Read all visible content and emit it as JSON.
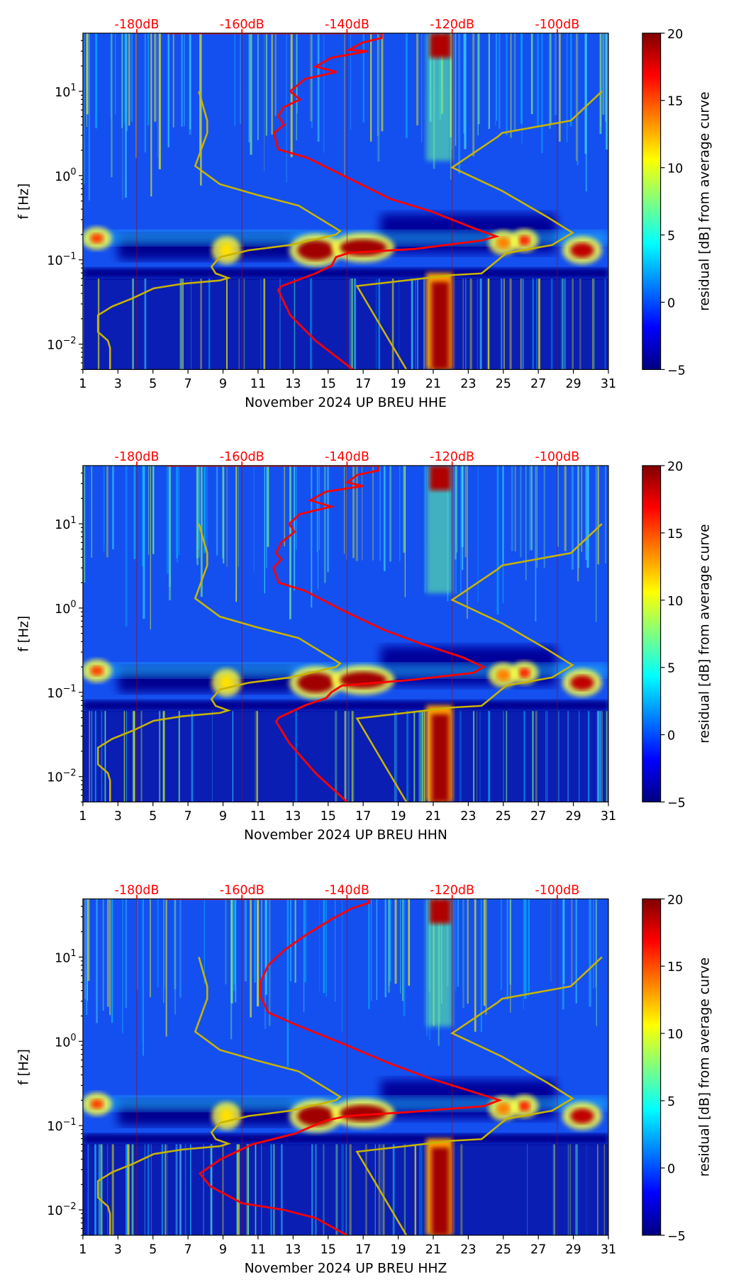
{
  "chart_data": [
    {
      "type": "heatmap",
      "xlabel": "November 2024 UP BREU  HHE",
      "ylabel": "f [Hz]",
      "xlim": [
        1,
        31
      ],
      "ylim": [
        0.005,
        49
      ],
      "yscale": "log",
      "x_ticks": [
        "1",
        "3",
        "5",
        "7",
        "9",
        "11",
        "13",
        "15",
        "17",
        "19",
        "21",
        "23",
        "25",
        "27",
        "29",
        "31"
      ],
      "y_ticks": [
        {
          "base": "10",
          "exp": "−2",
          "value": 0.01
        },
        {
          "base": "10",
          "exp": "−1",
          "value": 0.1
        },
        {
          "base": "10",
          "exp": "0",
          "value": 1
        },
        {
          "base": "10",
          "exp": "1",
          "value": 10
        }
      ],
      "top_axis": {
        "ticks": [
          "-180dB",
          "-160dB",
          "-140dB",
          "-120dB",
          "-100dB"
        ],
        "values": [
          -180,
          -160,
          -140,
          -120,
          -100
        ],
        "color": "#ff0000"
      },
      "colorbar": {
        "label": "residual [dB] from average curve",
        "ticks": [
          "20",
          "15",
          "10",
          "5",
          "0",
          "−5"
        ],
        "range": [
          -5,
          20
        ],
        "colormap": "jet"
      },
      "red_curve": {
        "color": "#ff0000",
        "points_dB_Hz": [
          [
            -174.5,
            49
          ],
          [
            -133.4,
            49
          ],
          [
            -133.4,
            43
          ],
          [
            -137,
            38
          ],
          [
            -139.7,
            31
          ],
          [
            -136,
            30
          ],
          [
            -143,
            25
          ],
          [
            -146,
            19.7
          ],
          [
            -142,
            17
          ],
          [
            -148,
            14
          ],
          [
            -150.8,
            10
          ],
          [
            -149,
            8
          ],
          [
            -152,
            6.5
          ],
          [
            -153.1,
            5.1
          ],
          [
            -152,
            4
          ],
          [
            -153.9,
            3.2
          ],
          [
            -153.1,
            2.05
          ],
          [
            -147.6,
            1.63
          ],
          [
            -139.7,
            0.93
          ],
          [
            -131.8,
            0.53
          ],
          [
            -123.9,
            0.375
          ],
          [
            -116,
            0.239
          ],
          [
            -111.6,
            0.19
          ],
          [
            -114.4,
            0.17
          ],
          [
            -127,
            0.135
          ],
          [
            -139.7,
            0.121
          ],
          [
            -142.1,
            0.108
          ],
          [
            -142.9,
            0.086
          ],
          [
            -146,
            0.069
          ],
          [
            -152.4,
            0.049
          ],
          [
            -153.1,
            0.044
          ],
          [
            -150.8,
            0.022
          ],
          [
            -146,
            0.011
          ],
          [
            -138.9,
            0.005
          ]
        ]
      },
      "low_model": {
        "color": "#c8b400",
        "points_dB_Hz": [
          [
            -168.2,
            10
          ],
          [
            -166.6,
            4.5
          ],
          [
            -166.6,
            3.2
          ],
          [
            -168.9,
            1.3
          ],
          [
            -164.2,
            0.79
          ],
          [
            -157.1,
            0.59
          ],
          [
            -149.2,
            0.44
          ],
          [
            -141.3,
            0.22
          ],
          [
            -142.1,
            0.2
          ],
          [
            -150.8,
            0.15
          ],
          [
            -158.7,
            0.13
          ],
          [
            -164.2,
            0.108
          ],
          [
            -165.8,
            0.083
          ],
          [
            -165,
            0.069
          ],
          [
            -162.6,
            0.061
          ],
          [
            -164.2,
            0.057
          ],
          [
            -171.3,
            0.052
          ],
          [
            -176.8,
            0.046
          ],
          [
            -180.8,
            0.035
          ],
          [
            -184.7,
            0.028
          ],
          [
            -187.4,
            0.022
          ],
          [
            -187.4,
            0.014
          ],
          [
            -185.5,
            0.011
          ],
          [
            -185.1,
            0.009
          ],
          [
            -185.1,
            0.005
          ]
        ]
      },
      "high_model": {
        "color": "#c8b400",
        "points_dB_Hz": [
          [
            -91.5,
            10
          ],
          [
            -97.4,
            4.5
          ],
          [
            -110.5,
            3.2
          ],
          [
            -111.3,
            2.9
          ],
          [
            -120,
            1.25
          ],
          [
            -110.5,
            0.66
          ],
          [
            -101.8,
            0.32
          ],
          [
            -97.1,
            0.21
          ],
          [
            -101,
            0.15
          ],
          [
            -109.7,
            0.12
          ],
          [
            -114.4,
            0.069
          ],
          [
            -120,
            0.066
          ],
          [
            -138.1,
            0.049
          ],
          [
            -128.7,
            0.005
          ]
        ]
      }
    },
    {
      "type": "heatmap",
      "xlabel": "November 2024 UP BREU  HHN",
      "ylabel": "f [Hz]",
      "xlim": [
        1,
        31
      ],
      "ylim": [
        0.005,
        49
      ],
      "yscale": "log",
      "x_ticks": [
        "1",
        "3",
        "5",
        "7",
        "9",
        "11",
        "13",
        "15",
        "17",
        "19",
        "21",
        "23",
        "25",
        "27",
        "29",
        "31"
      ],
      "y_ticks": [
        {
          "base": "10",
          "exp": "−2",
          "value": 0.01
        },
        {
          "base": "10",
          "exp": "−1",
          "value": 0.1
        },
        {
          "base": "10",
          "exp": "0",
          "value": 1
        },
        {
          "base": "10",
          "exp": "1",
          "value": 10
        }
      ],
      "top_axis": {
        "ticks": [
          "-180dB",
          "-160dB",
          "-140dB",
          "-120dB",
          "-100dB"
        ],
        "values": [
          -180,
          -160,
          -140,
          -120,
          -100
        ],
        "color": "#ff0000"
      },
      "colorbar": {
        "label": "residual [dB] from average curve",
        "ticks": [
          "20",
          "15",
          "10",
          "5",
          "0",
          "−5"
        ],
        "range": [
          -5,
          20
        ],
        "colormap": "jet"
      },
      "red_curve": {
        "color": "#ff0000",
        "points_dB_Hz": [
          [
            -174.5,
            49
          ],
          [
            -134,
            49
          ],
          [
            -134,
            43
          ],
          [
            -138,
            38
          ],
          [
            -140,
            31
          ],
          [
            -137,
            28
          ],
          [
            -144,
            24
          ],
          [
            -147,
            19
          ],
          [
            -143,
            16
          ],
          [
            -149,
            13
          ],
          [
            -151,
            10
          ],
          [
            -150,
            8
          ],
          [
            -152.5,
            6
          ],
          [
            -153.5,
            4.5
          ],
          [
            -152.5,
            3.8
          ],
          [
            -154,
            3
          ],
          [
            -153,
            2
          ],
          [
            -148,
            1.6
          ],
          [
            -141,
            0.95
          ],
          [
            -133,
            0.55
          ],
          [
            -126,
            0.38
          ],
          [
            -118,
            0.26
          ],
          [
            -114,
            0.2
          ],
          [
            -116,
            0.17
          ],
          [
            -128,
            0.14
          ],
          [
            -141,
            0.12
          ],
          [
            -143,
            0.1
          ],
          [
            -144,
            0.085
          ],
          [
            -148,
            0.07
          ],
          [
            -153,
            0.05
          ],
          [
            -153.5,
            0.045
          ],
          [
            -151,
            0.025
          ],
          [
            -146,
            0.011
          ],
          [
            -140,
            0.005
          ]
        ]
      },
      "low_model": {
        "color": "#c8b400",
        "points_dB_Hz": [
          [
            -168.2,
            10
          ],
          [
            -166.6,
            4.5
          ],
          [
            -166.6,
            3.2
          ],
          [
            -168.9,
            1.3
          ],
          [
            -164.2,
            0.79
          ],
          [
            -157.1,
            0.59
          ],
          [
            -149.2,
            0.44
          ],
          [
            -141.3,
            0.22
          ],
          [
            -142.1,
            0.2
          ],
          [
            -150.8,
            0.15
          ],
          [
            -158.7,
            0.13
          ],
          [
            -164.2,
            0.108
          ],
          [
            -165.8,
            0.083
          ],
          [
            -165,
            0.069
          ],
          [
            -162.6,
            0.061
          ],
          [
            -164.2,
            0.057
          ],
          [
            -171.3,
            0.052
          ],
          [
            -176.8,
            0.046
          ],
          [
            -180.8,
            0.035
          ],
          [
            -184.7,
            0.028
          ],
          [
            -187.4,
            0.022
          ],
          [
            -187.4,
            0.014
          ],
          [
            -185.5,
            0.011
          ],
          [
            -185.1,
            0.009
          ],
          [
            -185.1,
            0.005
          ]
        ]
      },
      "high_model": {
        "color": "#c8b400",
        "points_dB_Hz": [
          [
            -91.5,
            10
          ],
          [
            -97.4,
            4.5
          ],
          [
            -110.5,
            3.2
          ],
          [
            -111.3,
            2.9
          ],
          [
            -120,
            1.25
          ],
          [
            -110.5,
            0.66
          ],
          [
            -101.8,
            0.32
          ],
          [
            -97.1,
            0.21
          ],
          [
            -101,
            0.15
          ],
          [
            -109.7,
            0.12
          ],
          [
            -114.4,
            0.069
          ],
          [
            -120,
            0.066
          ],
          [
            -138.1,
            0.049
          ],
          [
            -128.7,
            0.005
          ]
        ]
      }
    },
    {
      "type": "heatmap",
      "xlabel": "November 2024 UP BREU  HHZ",
      "ylabel": "f [Hz]",
      "xlim": [
        1,
        31
      ],
      "ylim": [
        0.005,
        49
      ],
      "yscale": "log",
      "x_ticks": [
        "1",
        "3",
        "5",
        "7",
        "9",
        "11",
        "13",
        "15",
        "17",
        "19",
        "21",
        "23",
        "25",
        "27",
        "29",
        "31"
      ],
      "y_ticks": [
        {
          "base": "10",
          "exp": "−2",
          "value": 0.01
        },
        {
          "base": "10",
          "exp": "−1",
          "value": 0.1
        },
        {
          "base": "10",
          "exp": "0",
          "value": 1
        },
        {
          "base": "10",
          "exp": "1",
          "value": 10
        }
      ],
      "top_axis": {
        "ticks": [
          "-180dB",
          "-160dB",
          "-140dB",
          "-120dB",
          "-100dB"
        ],
        "values": [
          -180,
          -160,
          -140,
          -120,
          -100
        ],
        "color": "#ff0000"
      },
      "colorbar": {
        "label": "residual [dB] from average curve",
        "ticks": [
          "20",
          "15",
          "10",
          "5",
          "0",
          "−5"
        ],
        "range": [
          -5,
          20
        ],
        "colormap": "jet"
      },
      "red_curve": {
        "color": "#ff0000",
        "points_dB_Hz": [
          [
            -174.5,
            49
          ],
          [
            -135.8,
            49
          ],
          [
            -135.8,
            44
          ],
          [
            -139,
            38
          ],
          [
            -143,
            28
          ],
          [
            -148,
            18
          ],
          [
            -152,
            12
          ],
          [
            -155,
            8
          ],
          [
            -156.5,
            5
          ],
          [
            -156.5,
            3.5
          ],
          [
            -155,
            2.2
          ],
          [
            -150,
            1.6
          ],
          [
            -141,
            0.95
          ],
          [
            -132,
            0.55
          ],
          [
            -124,
            0.36
          ],
          [
            -115,
            0.24
          ],
          [
            -111,
            0.2
          ],
          [
            -114,
            0.17
          ],
          [
            -128,
            0.145
          ],
          [
            -140,
            0.13
          ],
          [
            -144,
            0.115
          ],
          [
            -150,
            0.08
          ],
          [
            -158,
            0.06
          ],
          [
            -164,
            0.04
          ],
          [
            -168,
            0.027
          ],
          [
            -166,
            0.019
          ],
          [
            -160,
            0.012
          ],
          [
            -152,
            0.01
          ],
          [
            -146,
            0.008
          ],
          [
            -140,
            0.005
          ]
        ]
      },
      "low_model": {
        "color": "#c8b400",
        "points_dB_Hz": [
          [
            -168.2,
            10
          ],
          [
            -166.6,
            4.5
          ],
          [
            -166.6,
            3.2
          ],
          [
            -168.9,
            1.3
          ],
          [
            -164.2,
            0.79
          ],
          [
            -157.1,
            0.59
          ],
          [
            -149.2,
            0.44
          ],
          [
            -141.3,
            0.22
          ],
          [
            -142.1,
            0.2
          ],
          [
            -150.8,
            0.15
          ],
          [
            -158.7,
            0.13
          ],
          [
            -164.2,
            0.108
          ],
          [
            -165.8,
            0.083
          ],
          [
            -165,
            0.069
          ],
          [
            -162.6,
            0.061
          ],
          [
            -164.2,
            0.057
          ],
          [
            -171.3,
            0.052
          ],
          [
            -176.8,
            0.046
          ],
          [
            -180.8,
            0.035
          ],
          [
            -184.7,
            0.028
          ],
          [
            -187.4,
            0.022
          ],
          [
            -187.4,
            0.014
          ],
          [
            -185.5,
            0.011
          ],
          [
            -185.1,
            0.009
          ],
          [
            -185.1,
            0.005
          ]
        ]
      },
      "high_model": {
        "color": "#c8b400",
        "points_dB_Hz": [
          [
            -91.5,
            10
          ],
          [
            -97.4,
            4.5
          ],
          [
            -110.5,
            3.2
          ],
          [
            -111.3,
            2.9
          ],
          [
            -120,
            1.25
          ],
          [
            -110.5,
            0.66
          ],
          [
            -101.8,
            0.32
          ],
          [
            -97.1,
            0.21
          ],
          [
            -101,
            0.15
          ],
          [
            -109.7,
            0.12
          ],
          [
            -114.4,
            0.069
          ],
          [
            -120,
            0.066
          ],
          [
            -138.1,
            0.049
          ],
          [
            -128.7,
            0.005
          ]
        ]
      }
    }
  ]
}
